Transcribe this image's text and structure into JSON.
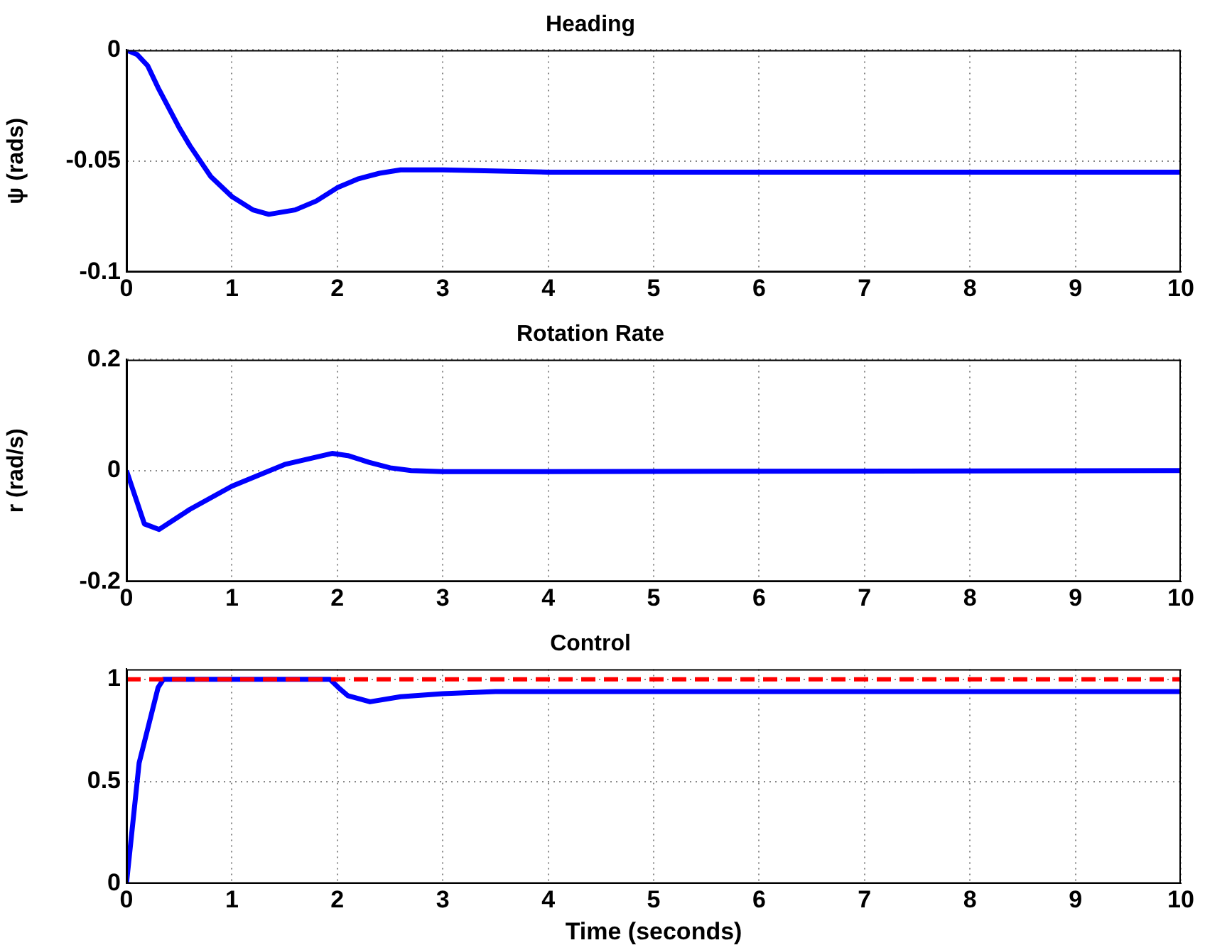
{
  "chart_data": [
    {
      "type": "line",
      "title": "Heading",
      "ylabel": "ψ (rads)",
      "xlim": [
        0,
        10
      ],
      "xticks": [
        0,
        1,
        2,
        3,
        4,
        5,
        6,
        7,
        8,
        9,
        10
      ],
      "ylim": [
        -0.1,
        0
      ],
      "yticks": [
        -0.1,
        -0.05,
        0
      ],
      "grid": true,
      "series": [
        {
          "color": "#0000ff",
          "x": [
            0,
            0.1,
            0.2,
            0.3,
            0.5,
            0.6,
            0.8,
            1.0,
            1.2,
            1.35,
            1.6,
            1.8,
            2.0,
            2.2,
            2.4,
            2.6,
            3,
            4,
            10
          ],
          "values": [
            0,
            -0.002,
            -0.007,
            -0.017,
            -0.035,
            -0.043,
            -0.057,
            -0.066,
            -0.072,
            -0.074,
            -0.072,
            -0.068,
            -0.062,
            -0.058,
            -0.0555,
            -0.054,
            -0.054,
            -0.055,
            -0.055
          ]
        }
      ]
    },
    {
      "type": "line",
      "title": "Rotation Rate",
      "ylabel": "r (rad/s)",
      "xlim": [
        0,
        10
      ],
      "xticks": [
        0,
        1,
        2,
        3,
        4,
        5,
        6,
        7,
        8,
        9,
        10
      ],
      "ylim": [
        -0.2,
        0.2
      ],
      "yticks": [
        -0.2,
        0,
        0.2
      ],
      "grid": true,
      "series": [
        {
          "color": "#0000ff",
          "x": [
            0,
            0.17,
            0.31,
            0.6,
            1.0,
            1.5,
            1.95,
            2.1,
            2.3,
            2.5,
            2.7,
            3,
            10
          ],
          "values": [
            0,
            -0.096,
            -0.106,
            -0.07,
            -0.028,
            0.011,
            0.031,
            0.027,
            0.015,
            0.005,
            0,
            -0.002,
            0
          ]
        }
      ]
    },
    {
      "type": "line",
      "title": "Control",
      "xlabel": "Time (seconds)",
      "xlim": [
        0,
        10
      ],
      "xticks": [
        0,
        1,
        2,
        3,
        4,
        5,
        6,
        7,
        8,
        9,
        10
      ],
      "ylim": [
        0,
        1.05
      ],
      "yticks": [
        0,
        0.5,
        1
      ],
      "grid": true,
      "ref_lines": [
        {
          "axis": "y",
          "value": 1,
          "color": "#ff0000",
          "line_style": "dashed"
        }
      ],
      "series": [
        {
          "color": "#0000ff",
          "x": [
            0,
            0.12,
            0.3,
            0.35,
            1.93,
            2.01,
            2.1,
            2.31,
            2.6,
            3,
            3.5,
            10
          ],
          "values": [
            0,
            0.59,
            0.96,
            1,
            1,
            0.96,
            0.92,
            0.89,
            0.915,
            0.93,
            0.94,
            0.94
          ]
        }
      ]
    }
  ]
}
